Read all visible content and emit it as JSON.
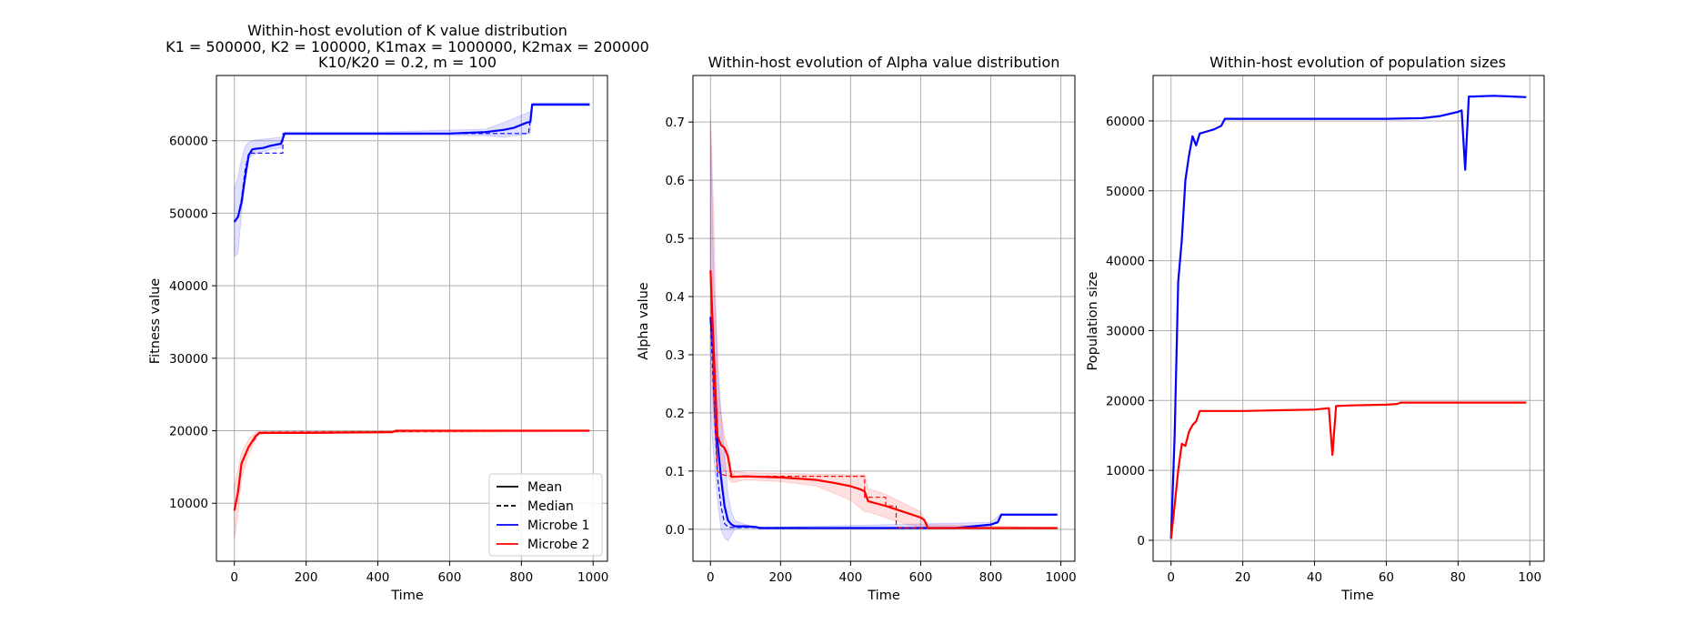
{
  "chart_data": [
    {
      "type": "line",
      "title": "Within-host evolution of K value distribution",
      "subtitle_lines": [
        "K1 = 500000, K2 = 100000, K1max = 1000000, K2max = 200000",
        "K10/K20 = 0.2, m = 100"
      ],
      "xlabel": "Time",
      "ylabel": "Fitness value",
      "xlim": [
        -50,
        1040
      ],
      "ylim": [
        2000,
        69000
      ],
      "xticks": [
        0,
        200,
        400,
        600,
        800,
        1000
      ],
      "yticks": [
        10000,
        20000,
        30000,
        40000,
        50000,
        60000
      ],
      "grid": true,
      "legend": {
        "placement": "lower-right",
        "entries": [
          {
            "label": "Mean",
            "color": "#000000",
            "style": "solid"
          },
          {
            "label": "Median",
            "color": "#000000",
            "style": "dashed"
          },
          {
            "label": "Microbe 1",
            "color": "#0000ff",
            "style": "solid"
          },
          {
            "label": "Microbe 2",
            "color": "#ff0000",
            "style": "solid"
          }
        ]
      },
      "series": [
        {
          "name": "Microbe 1",
          "stat": "Mean",
          "color": "#0000ff",
          "style": "solid",
          "x": [
            0,
            10,
            20,
            30,
            40,
            50,
            60,
            80,
            100,
            130,
            140,
            200,
            400,
            600,
            700,
            750,
            780,
            800,
            815,
            825,
            830,
            850,
            990
          ],
          "y": [
            48800,
            49500,
            51500,
            55000,
            58000,
            58800,
            58900,
            59000,
            59300,
            59600,
            61000,
            61000,
            61000,
            61000,
            61200,
            61500,
            61800,
            62200,
            62500,
            62600,
            65000,
            65000,
            65000
          ]
        },
        {
          "name": "Microbe 1",
          "stat": "Median",
          "color": "#0000ff",
          "style": "dashed",
          "x": [
            0,
            10,
            20,
            30,
            40,
            50,
            135,
            135,
            700,
            820,
            820,
            830,
            990
          ],
          "y": [
            48800,
            49500,
            52000,
            56000,
            58300,
            58300,
            58300,
            61000,
            61000,
            61000,
            61000,
            65000,
            65000
          ]
        },
        {
          "name": "Microbe 1",
          "stat": "Band",
          "color": "#0000ff",
          "style": "band",
          "x": [
            0,
            10,
            20,
            30,
            40,
            50,
            60,
            80,
            100,
            130,
            140,
            400,
            700,
            750,
            800,
            825,
            830,
            990
          ],
          "lower": [
            44000,
            44500,
            50000,
            54500,
            57500,
            58000,
            58200,
            58500,
            58800,
            59000,
            60800,
            60800,
            60700,
            60500,
            60800,
            61000,
            64800,
            64800
          ],
          "upper": [
            53500,
            55000,
            57500,
            59200,
            59800,
            60000,
            60100,
            60200,
            60300,
            60500,
            61200,
            61200,
            61600,
            62500,
            63500,
            64000,
            65200,
            65200
          ]
        },
        {
          "name": "Microbe 2",
          "stat": "Mean",
          "color": "#ff0000",
          "style": "solid",
          "x": [
            0,
            10,
            20,
            40,
            60,
            70,
            100,
            200,
            300,
            440,
            450,
            600,
            990
          ],
          "y": [
            9000,
            11500,
            15500,
            17800,
            19300,
            19700,
            19700,
            19700,
            19750,
            19800,
            20000,
            20000,
            20000
          ]
        },
        {
          "name": "Microbe 2",
          "stat": "Median",
          "color": "#ff0000",
          "style": "dashed",
          "x": [
            0,
            10,
            20,
            40,
            55,
            70,
            990
          ],
          "y": [
            9000,
            11500,
            15500,
            17800,
            18700,
            19800,
            20000
          ]
        },
        {
          "name": "Microbe 2",
          "stat": "Band",
          "color": "#ff0000",
          "style": "band",
          "x": [
            0,
            10,
            20,
            40,
            60,
            70,
            100,
            440,
            990
          ],
          "lower": [
            5000,
            8500,
            13500,
            16800,
            18800,
            19500,
            19600,
            19700,
            19900
          ],
          "upper": [
            12500,
            14500,
            17000,
            18800,
            19800,
            19900,
            19900,
            19900,
            20100
          ]
        }
      ]
    },
    {
      "type": "line",
      "title": "Within-host evolution of Alpha value distribution",
      "xlabel": "Time",
      "ylabel": "Alpha value",
      "xlim": [
        -50,
        1040
      ],
      "ylim": [
        -0.055,
        0.78
      ],
      "xticks": [
        0,
        200,
        400,
        600,
        800,
        1000
      ],
      "yticks": [
        0.0,
        0.1,
        0.2,
        0.3,
        0.4,
        0.5,
        0.6,
        0.7
      ],
      "ytick_labels": [
        "0.0",
        "0.1",
        "0.2",
        "0.3",
        "0.4",
        "0.5",
        "0.6",
        "0.7"
      ],
      "grid": true,
      "series": [
        {
          "name": "Microbe 1",
          "stat": "Mean",
          "color": "#0000ff",
          "style": "solid",
          "x": [
            0,
            10,
            20,
            30,
            40,
            50,
            60,
            70,
            100,
            130,
            140,
            400,
            700,
            800,
            820,
            830,
            990
          ],
          "y": [
            0.365,
            0.29,
            0.15,
            0.09,
            0.04,
            0.015,
            0.008,
            0.005,
            0.005,
            0.004,
            0.002,
            0.002,
            0.002,
            0.008,
            0.012,
            0.025,
            0.025
          ]
        },
        {
          "name": "Microbe 1",
          "stat": "Median",
          "color": "#0000ff",
          "style": "dashed",
          "x": [
            0,
            10,
            20,
            30,
            40,
            50,
            60,
            990
          ],
          "y": [
            0.36,
            0.22,
            0.09,
            0.04,
            0.01,
            0.004,
            0.003,
            0.002
          ]
        },
        {
          "name": "Microbe 1",
          "stat": "Band",
          "color": "#0000ff",
          "style": "band",
          "x": [
            0,
            10,
            20,
            30,
            40,
            50,
            60,
            70,
            100,
            140,
            800,
            830,
            990
          ],
          "lower": [
            0.2,
            0.12,
            0.05,
            0.0,
            -0.015,
            -0.02,
            -0.01,
            0.0,
            0.003,
            0.001,
            0.004,
            0.024,
            0.024
          ],
          "upper": [
            0.7,
            0.42,
            0.3,
            0.2,
            0.13,
            0.06,
            0.03,
            0.015,
            0.008,
            0.003,
            0.012,
            0.027,
            0.027
          ]
        },
        {
          "name": "Microbe 2",
          "stat": "Mean",
          "color": "#ff0000",
          "style": "solid",
          "x": [
            0,
            10,
            20,
            30,
            40,
            50,
            60,
            100,
            200,
            300,
            350,
            400,
            430,
            440,
            450,
            500,
            550,
            600,
            610,
            615,
            620,
            990
          ],
          "y": [
            0.445,
            0.3,
            0.16,
            0.145,
            0.14,
            0.125,
            0.09,
            0.091,
            0.089,
            0.085,
            0.08,
            0.074,
            0.068,
            0.065,
            0.048,
            0.04,
            0.03,
            0.02,
            0.016,
            0.01,
            0.002,
            0.002
          ]
        },
        {
          "name": "Microbe 2",
          "stat": "Median",
          "color": "#ff0000",
          "style": "dashed",
          "x": [
            0,
            10,
            20,
            30,
            40,
            50,
            60,
            440,
            440,
            450,
            500,
            500,
            530,
            530,
            540,
            990
          ],
          "y": [
            0.44,
            0.22,
            0.1,
            0.095,
            0.093,
            0.092,
            0.091,
            0.091,
            0.055,
            0.055,
            0.055,
            0.04,
            0.04,
            0.005,
            0.002,
            0.002
          ]
        },
        {
          "name": "Microbe 2",
          "stat": "Band",
          "color": "#ff0000",
          "style": "band",
          "x": [
            0,
            10,
            20,
            30,
            40,
            50,
            60,
            100,
            200,
            300,
            400,
            440,
            450,
            500,
            550,
            600,
            620,
            990
          ],
          "lower": [
            0.3,
            0.18,
            0.12,
            0.11,
            0.1,
            0.09,
            0.08,
            0.085,
            0.082,
            0.075,
            0.05,
            0.03,
            0.03,
            0.02,
            0.01,
            0.003,
            0.001,
            0.001
          ],
          "upper": [
            0.72,
            0.52,
            0.26,
            0.2,
            0.16,
            0.14,
            0.1,
            0.097,
            0.096,
            0.095,
            0.094,
            0.094,
            0.07,
            0.06,
            0.045,
            0.03,
            0.008,
            0.003
          ]
        }
      ]
    },
    {
      "type": "line",
      "title": "Within-host evolution of population sizes",
      "xlabel": "Time",
      "ylabel": "Population size",
      "xlim": [
        -5,
        104
      ],
      "ylim": [
        -3000,
        66500
      ],
      "xticks": [
        0,
        20,
        40,
        60,
        80,
        100
      ],
      "yticks": [
        0,
        10000,
        20000,
        30000,
        40000,
        50000,
        60000
      ],
      "grid": true,
      "series": [
        {
          "name": "Microbe 1",
          "color": "#0000ff",
          "style": "solid",
          "x": [
            0,
            1,
            2,
            3,
            4,
            5,
            6,
            7,
            8,
            10,
            12,
            14,
            15,
            20,
            30,
            40,
            50,
            60,
            70,
            75,
            80,
            81,
            82,
            83,
            84,
            90,
            95,
            99
          ],
          "y": [
            200,
            15000,
            37000,
            43000,
            51500,
            55000,
            57800,
            56500,
            58200,
            58500,
            58800,
            59300,
            60300,
            60300,
            60300,
            60300,
            60300,
            60300,
            60400,
            60700,
            61300,
            61500,
            53000,
            63500,
            63500,
            63600,
            63500,
            63400
          ]
        },
        {
          "name": "Microbe 2",
          "color": "#ff0000",
          "style": "solid",
          "x": [
            0,
            1,
            2,
            3,
            4,
            5,
            6,
            7,
            8,
            10,
            20,
            30,
            40,
            44,
            45,
            46,
            50,
            60,
            63,
            64,
            70,
            80,
            90,
            99
          ],
          "y": [
            200,
            5000,
            10000,
            13800,
            13500,
            15500,
            16500,
            17000,
            18500,
            18500,
            18500,
            18600,
            18700,
            18900,
            12200,
            19200,
            19300,
            19400,
            19500,
            19700,
            19700,
            19700,
            19700,
            19700
          ]
        }
      ]
    }
  ]
}
